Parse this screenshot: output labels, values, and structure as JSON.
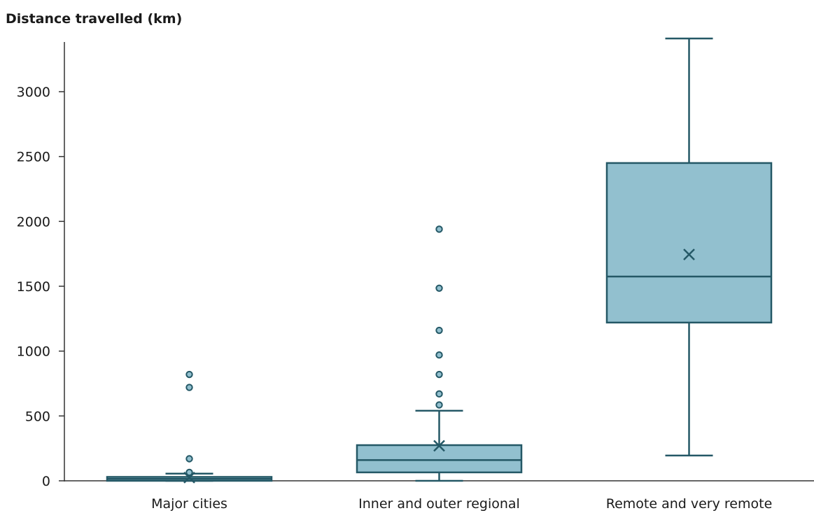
{
  "chart_data": {
    "type": "box",
    "title": "Distance travelled (km)",
    "ylabel": "Distance travelled (km)",
    "xlabel": "",
    "ylim": [
      0,
      3400
    ],
    "yticks": [
      0,
      500,
      1000,
      1500,
      2000,
      2500,
      3000
    ],
    "grid": false,
    "colors": {
      "box_fill": "#92C0CF",
      "stroke": "#245866",
      "axis": "#333333"
    },
    "categories": [
      "Major cities",
      "Inner and outer regional",
      "Remote and very remote"
    ],
    "boxes": [
      {
        "category": "Major cities",
        "whisker_low": 0,
        "q1": 0,
        "median": 15,
        "q3": 30,
        "whisker_high": 55,
        "mean": 25,
        "outliers": [
          65,
          170,
          720,
          820
        ]
      },
      {
        "category": "Inner and outer regional",
        "whisker_low": 0,
        "q1": 65,
        "median": 160,
        "q3": 275,
        "whisker_high": 540,
        "mean": 270,
        "outliers": [
          585,
          670,
          820,
          970,
          1160,
          1485,
          1940
        ]
      },
      {
        "category": "Remote and very remote",
        "whisker_low": 195,
        "q1": 1220,
        "median": 1575,
        "q3": 2450,
        "whisker_high": 3410,
        "mean": 1745,
        "outliers": []
      }
    ]
  }
}
